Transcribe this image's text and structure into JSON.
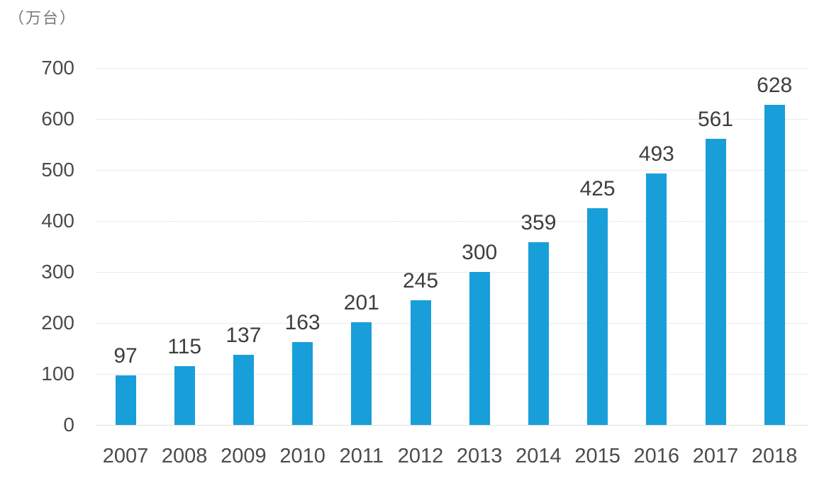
{
  "chart": {
    "unit_label": "（万台）",
    "colors": {
      "bar": "#189fd9",
      "gridline": "#d6d6d6",
      "axis_text": "#4b4b4b",
      "value_text": "#3e3e3e",
      "unit_text": "#7a7a7a",
      "background": "#ffffff"
    }
  },
  "chart_data": {
    "type": "bar",
    "title": "",
    "xlabel": "",
    "ylabel": "（万台）",
    "categories": [
      "2007",
      "2008",
      "2009",
      "2010",
      "2011",
      "2012",
      "2013",
      "2014",
      "2015",
      "2016",
      "2017",
      "2018"
    ],
    "values": [
      97,
      115,
      137,
      163,
      201,
      245,
      300,
      359,
      425,
      493,
      561,
      628
    ],
    "data_labels_shown": true,
    "ylim": [
      0,
      700
    ],
    "yticks": [
      0,
      100,
      200,
      300,
      400,
      500,
      600,
      700
    ],
    "grid": true,
    "gridline_style": "dotted",
    "legend": "none",
    "bar_color": "#189fd9"
  }
}
